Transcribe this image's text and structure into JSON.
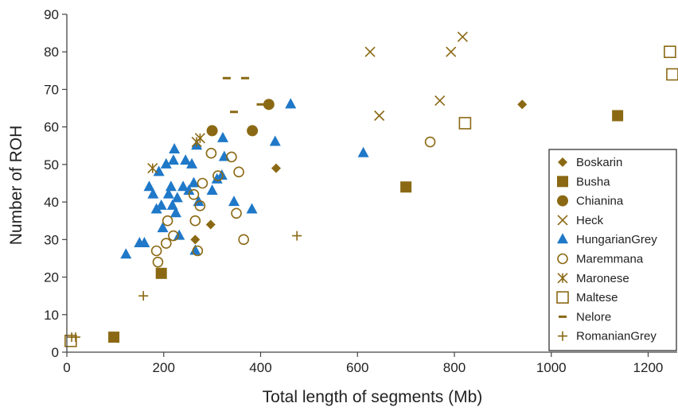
{
  "chart_data": {
    "type": "scatter",
    "xlabel": "Total length of segments (Mb)",
    "ylabel": "Number of ROH",
    "xlim": [
      0,
      1260
    ],
    "ylim": [
      0,
      90
    ],
    "xticks": [
      0,
      200,
      400,
      600,
      800,
      1000,
      1200
    ],
    "yticks": [
      0,
      10,
      20,
      30,
      40,
      50,
      60,
      70,
      80,
      90
    ],
    "grid": false,
    "legend_position": "right",
    "colors": {
      "brown": "#8b6914",
      "blue": "#1f78c8"
    },
    "series": [
      {
        "name": "Boskarin",
        "marker": "diamond",
        "color": "#8b6914",
        "points": [
          [
            265,
            30
          ],
          [
            297,
            34
          ],
          [
            432,
            49
          ],
          [
            940,
            66
          ]
        ]
      },
      {
        "name": "Busha",
        "marker": "square",
        "color": "#8b6914",
        "points": [
          [
            97,
            4
          ],
          [
            195,
            21
          ],
          [
            700,
            44
          ],
          [
            1137,
            63
          ]
        ]
      },
      {
        "name": "Chianina",
        "marker": "circle",
        "color": "#8b6914",
        "points": [
          [
            300,
            59
          ],
          [
            383,
            59
          ],
          [
            417,
            66
          ]
        ]
      },
      {
        "name": "Heck",
        "marker": "x",
        "color": "#8b6914",
        "points": [
          [
            626,
            80
          ],
          [
            645,
            63
          ],
          [
            770,
            67
          ],
          [
            793,
            80
          ],
          [
            817,
            84
          ]
        ]
      },
      {
        "name": "HungarianGrey",
        "marker": "triangle",
        "color": "#1f78c8",
        "points": [
          [
            122,
            26
          ],
          [
            150,
            29
          ],
          [
            160,
            29
          ],
          [
            170,
            44
          ],
          [
            178,
            42
          ],
          [
            185,
            38
          ],
          [
            190,
            48
          ],
          [
            195,
            39
          ],
          [
            198,
            33
          ],
          [
            205,
            50
          ],
          [
            210,
            42
          ],
          [
            215,
            44
          ],
          [
            218,
            39
          ],
          [
            220,
            51
          ],
          [
            222,
            54
          ],
          [
            225,
            37
          ],
          [
            228,
            41
          ],
          [
            232,
            31
          ],
          [
            240,
            44
          ],
          [
            245,
            51
          ],
          [
            252,
            43
          ],
          [
            258,
            50
          ],
          [
            262,
            45
          ],
          [
            265,
            27
          ],
          [
            268,
            55
          ],
          [
            272,
            40
          ],
          [
            300,
            43
          ],
          [
            310,
            46
          ],
          [
            320,
            47
          ],
          [
            322,
            57
          ],
          [
            325,
            52
          ],
          [
            345,
            40
          ],
          [
            382,
            38
          ],
          [
            430,
            56
          ],
          [
            462,
            66
          ],
          [
            612,
            53
          ]
        ]
      },
      {
        "name": "Maremmana",
        "marker": "circle-open",
        "color": "#8b6914",
        "points": [
          [
            185,
            27
          ],
          [
            188,
            24
          ],
          [
            205,
            29
          ],
          [
            208,
            35
          ],
          [
            220,
            31
          ],
          [
            262,
            42
          ],
          [
            265,
            35
          ],
          [
            270,
            27
          ],
          [
            275,
            39
          ],
          [
            280,
            45
          ],
          [
            298,
            53
          ],
          [
            312,
            47
          ],
          [
            340,
            52
          ],
          [
            350,
            37
          ],
          [
            355,
            48
          ],
          [
            365,
            30
          ],
          [
            750,
            56
          ]
        ]
      },
      {
        "name": "Maronese",
        "marker": "asterisk",
        "color": "#8b6914",
        "points": [
          [
            177,
            49
          ],
          [
            268,
            56
          ],
          [
            275,
            57
          ]
        ]
      },
      {
        "name": "Maltese",
        "marker": "square-open",
        "color": "#8b6914",
        "points": [
          [
            8,
            3
          ],
          [
            822,
            61
          ],
          [
            1245,
            80
          ],
          [
            1250,
            74
          ]
        ]
      },
      {
        "name": "Nelore",
        "marker": "dash",
        "color": "#8b6914",
        "points": [
          [
            330,
            73
          ],
          [
            345,
            64
          ],
          [
            368,
            73
          ],
          [
            400,
            66
          ]
        ]
      },
      {
        "name": "RomanianGrey",
        "marker": "plus",
        "color": "#8b6914",
        "points": [
          [
            10,
            4
          ],
          [
            18,
            4
          ],
          [
            158,
            15
          ],
          [
            475,
            31
          ]
        ]
      }
    ]
  }
}
